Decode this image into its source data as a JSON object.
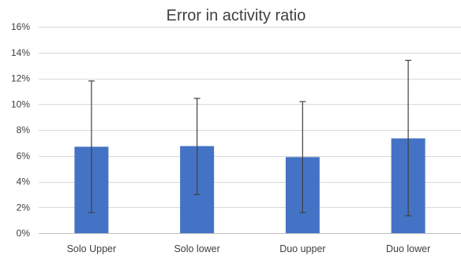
{
  "chart_data": {
    "type": "bar",
    "title": "Error in activity ratio",
    "xlabel": "",
    "ylabel": "",
    "categories": [
      "Solo Upper",
      "Solo lower",
      "Duo upper",
      "Duo lower"
    ],
    "values": [
      6.7,
      6.75,
      5.9,
      7.35
    ],
    "error_low": [
      1.6,
      3.0,
      1.6,
      1.35
    ],
    "error_high": [
      11.8,
      10.45,
      10.2,
      13.4
    ],
    "ylim": [
      0,
      16
    ],
    "yticks": [
      0,
      2,
      4,
      6,
      8,
      10,
      12,
      14,
      16
    ],
    "ytick_labels": [
      "0%",
      "2%",
      "4%",
      "6%",
      "8%",
      "10%",
      "12%",
      "14%",
      "16%"
    ],
    "grid": true,
    "legend": "none",
    "bar_color": "#4472c4"
  }
}
